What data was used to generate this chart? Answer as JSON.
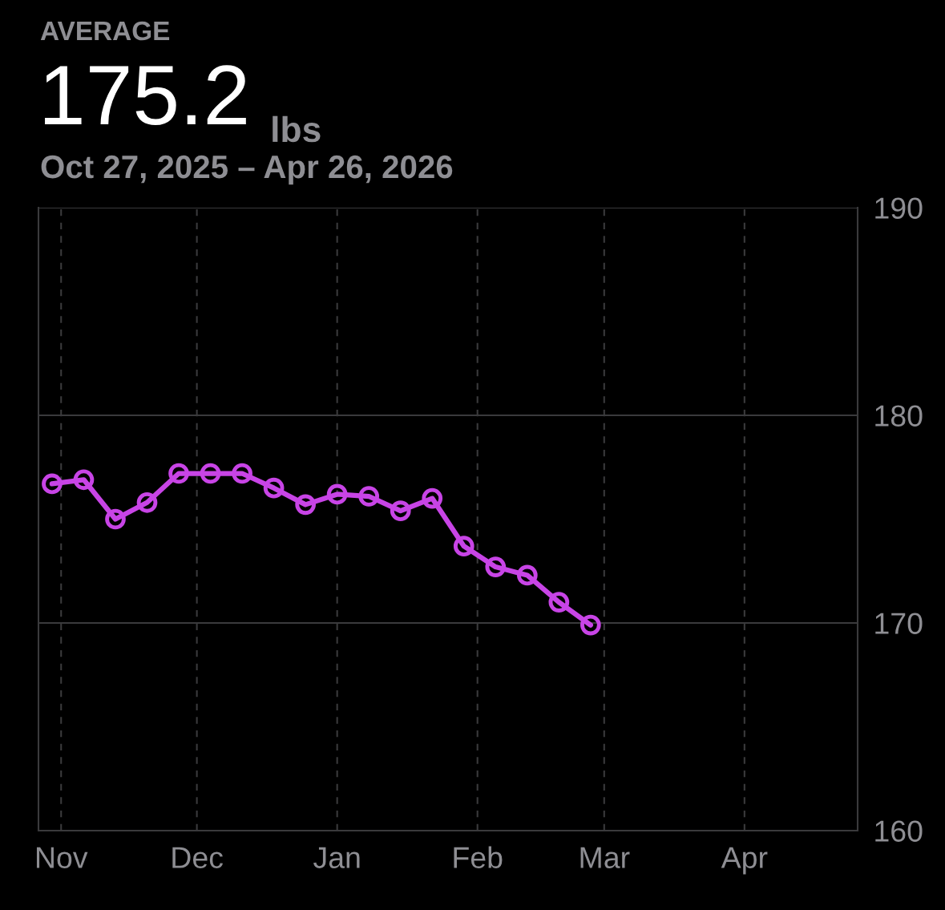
{
  "chart_data": {
    "type": "line",
    "subtitle": "AVERAGE",
    "title": "175.2",
    "annotations": [
      "lbs",
      "Oct 27, 2025 – Apr 26, 2026"
    ],
    "x": [
      "2025-10-30",
      "2025-11-06",
      "2025-11-13",
      "2025-11-20",
      "2025-11-27",
      "2025-12-04",
      "2025-12-11",
      "2025-12-18",
      "2025-12-25",
      "2026-01-01",
      "2026-01-08",
      "2026-01-15",
      "2026-01-22",
      "2026-01-29",
      "2026-02-05",
      "2026-02-12",
      "2026-02-19",
      "2026-02-26"
    ],
    "series": [
      {
        "color": "#c844e6",
        "values": [
          176.7,
          176.9,
          175.0,
          175.8,
          177.2,
          177.2,
          177.2,
          176.5,
          175.7,
          176.2,
          176.1,
          175.4,
          176.0,
          173.7,
          172.7,
          172.3,
          171.0,
          169.9
        ]
      }
    ],
    "xlim": [
      "2025-10-27",
      "2026-04-26"
    ],
    "xticks": [
      {
        "value": "2025-11-01",
        "label": "Nov"
      },
      {
        "value": "2025-12-01",
        "label": "Dec"
      },
      {
        "value": "2026-01-01",
        "label": "Jan"
      },
      {
        "value": "2026-02-01",
        "label": "Feb"
      },
      {
        "value": "2026-03-01",
        "label": "Mar"
      },
      {
        "value": "2026-04-01",
        "label": "Apr"
      }
    ],
    "ylim": [
      160,
      190
    ],
    "yticks": [
      160,
      170,
      180,
      190
    ],
    "grid": true,
    "marker": "circle",
    "line_style": "solid"
  }
}
